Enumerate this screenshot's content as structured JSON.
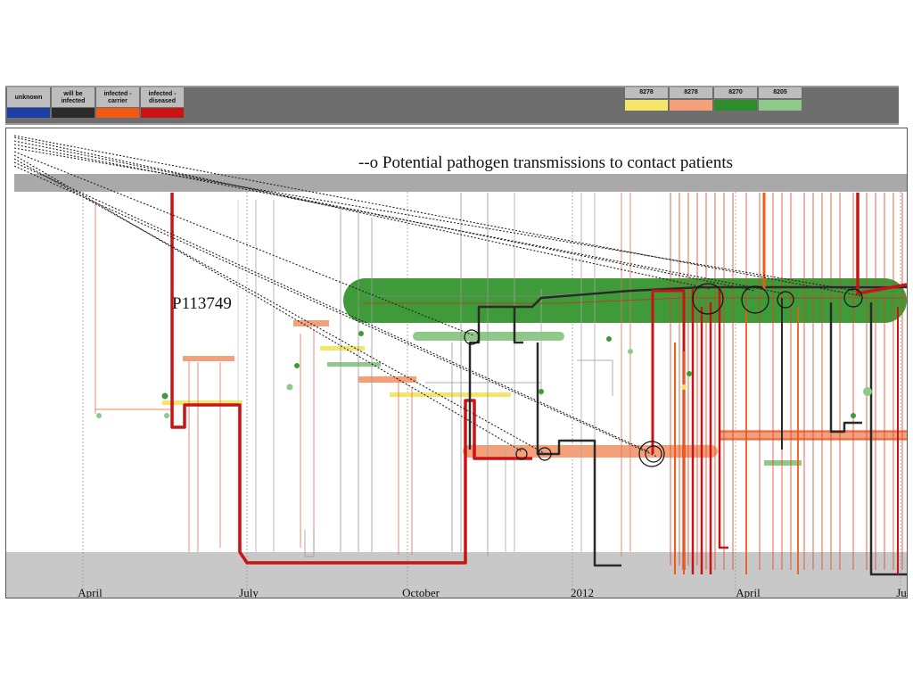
{
  "legend": {
    "states": [
      {
        "label": "unknown",
        "color": "#1c3fa8"
      },
      {
        "label": "will be infected",
        "color": "#2a2a2a"
      },
      {
        "label": "infected - carrier",
        "color": "#f05a14"
      },
      {
        "label": "infected - diseased",
        "color": "#c81414"
      }
    ],
    "wards": [
      {
        "label": "8278",
        "color": "#f3e66a"
      },
      {
        "label": "8278",
        "color": "#f4a07a"
      },
      {
        "label": "8270",
        "color": "#2e8b2e"
      },
      {
        "label": "8205",
        "color": "#8fc98a"
      }
    ]
  },
  "annotation": "--o  Potential pathogen transmissions to contact patients",
  "patient_label": "P113749",
  "timeline": {
    "ticks": [
      "April",
      "July",
      "October",
      "2012",
      "April",
      "Ju"
    ]
  },
  "colors": {
    "band_gray": "#a9a9a9",
    "bottom_gray": "#c8c8c8",
    "green_band": "#3f9a3a"
  }
}
